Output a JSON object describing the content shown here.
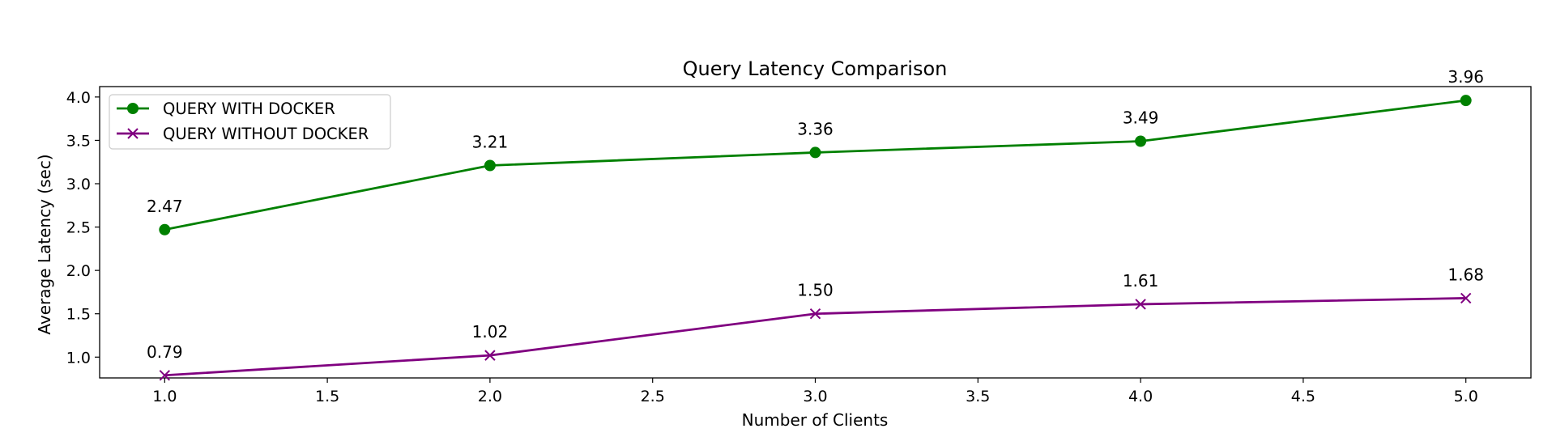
{
  "chart_data": {
    "type": "line",
    "title": "Query Latency Comparison",
    "xlabel": "Number of Clients",
    "ylabel": "Average Latency (sec)",
    "x": [
      1.0,
      2.0,
      3.0,
      4.0,
      5.0
    ],
    "xlim": [
      0.8,
      5.2
    ],
    "ylim": [
      0.76,
      4.12
    ],
    "xticks": [
      "1.0",
      "1.5",
      "2.0",
      "2.5",
      "3.0",
      "3.5",
      "4.0",
      "4.5",
      "5.0"
    ],
    "yticks": [
      "1.0",
      "1.5",
      "2.0",
      "2.5",
      "3.0",
      "3.5",
      "4.0"
    ],
    "grid": false,
    "legend_position": "upper-left",
    "series": [
      {
        "name": "QUERY WITH DOCKER",
        "values": [
          2.47,
          3.21,
          3.36,
          3.49,
          3.96
        ],
        "labels": [
          "2.47",
          "3.21",
          "3.36",
          "3.49",
          "3.96"
        ],
        "color": "#008000",
        "marker": "circle"
      },
      {
        "name": "QUERY WITHOUT DOCKER",
        "values": [
          0.79,
          1.02,
          1.5,
          1.61,
          1.68
        ],
        "labels": [
          "0.79",
          "1.02",
          "1.50",
          "1.61",
          "1.68"
        ],
        "color": "#800080",
        "marker": "x"
      }
    ]
  }
}
